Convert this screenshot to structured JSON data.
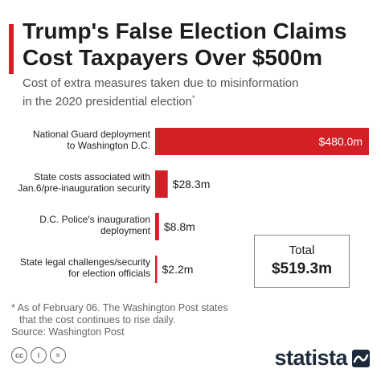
{
  "header": {
    "title_lines": [
      "Trump's False Election Claims",
      "Cost Taxpayers Over $500m"
    ],
    "subtitle_lines": [
      "Cost of extra measures taken due to misinformation",
      "in the 2020 presidential election"
    ],
    "subtitle_marker": "*"
  },
  "chart_data": {
    "type": "bar",
    "orientation": "horizontal",
    "categories": [
      "National Guard deployment to Washington D.C.",
      "State costs associated with Jan.6/pre-inauguration security",
      "D.C. Police's inauguration deployment",
      "State legal challenges/security for election officials"
    ],
    "category_label_lines": [
      [
        "National Guard deployment",
        "to Washington D.C."
      ],
      [
        "State costs associated with",
        "Jan.6/pre-inauguration security"
      ],
      [
        "D.C. Police's inauguration",
        "deployment"
      ],
      [
        "State legal challenges/security",
        "for election officials"
      ]
    ],
    "values": [
      480.0,
      28.3,
      8.8,
      2.2
    ],
    "value_labels": [
      "$480.0m",
      "$28.3m",
      "$8.8m",
      "$2.2m"
    ],
    "unit": "million USD",
    "xlim": [
      0,
      480
    ],
    "grid": false,
    "bar_color": "#d41f26"
  },
  "total": {
    "label": "Total",
    "value": "$519.3m"
  },
  "footnote_lines": [
    "* As of February 06. The Washington Post states",
    "that the cost continues to rise daily."
  ],
  "source": "Source: Washington Post",
  "license_icons": [
    "cc-icon",
    "attribution-icon",
    "no-derivatives-icon"
  ],
  "license_glyphs": [
    "cc",
    "i",
    "="
  ],
  "brand": {
    "name": "statista",
    "icon": "statista-wave-icon"
  }
}
